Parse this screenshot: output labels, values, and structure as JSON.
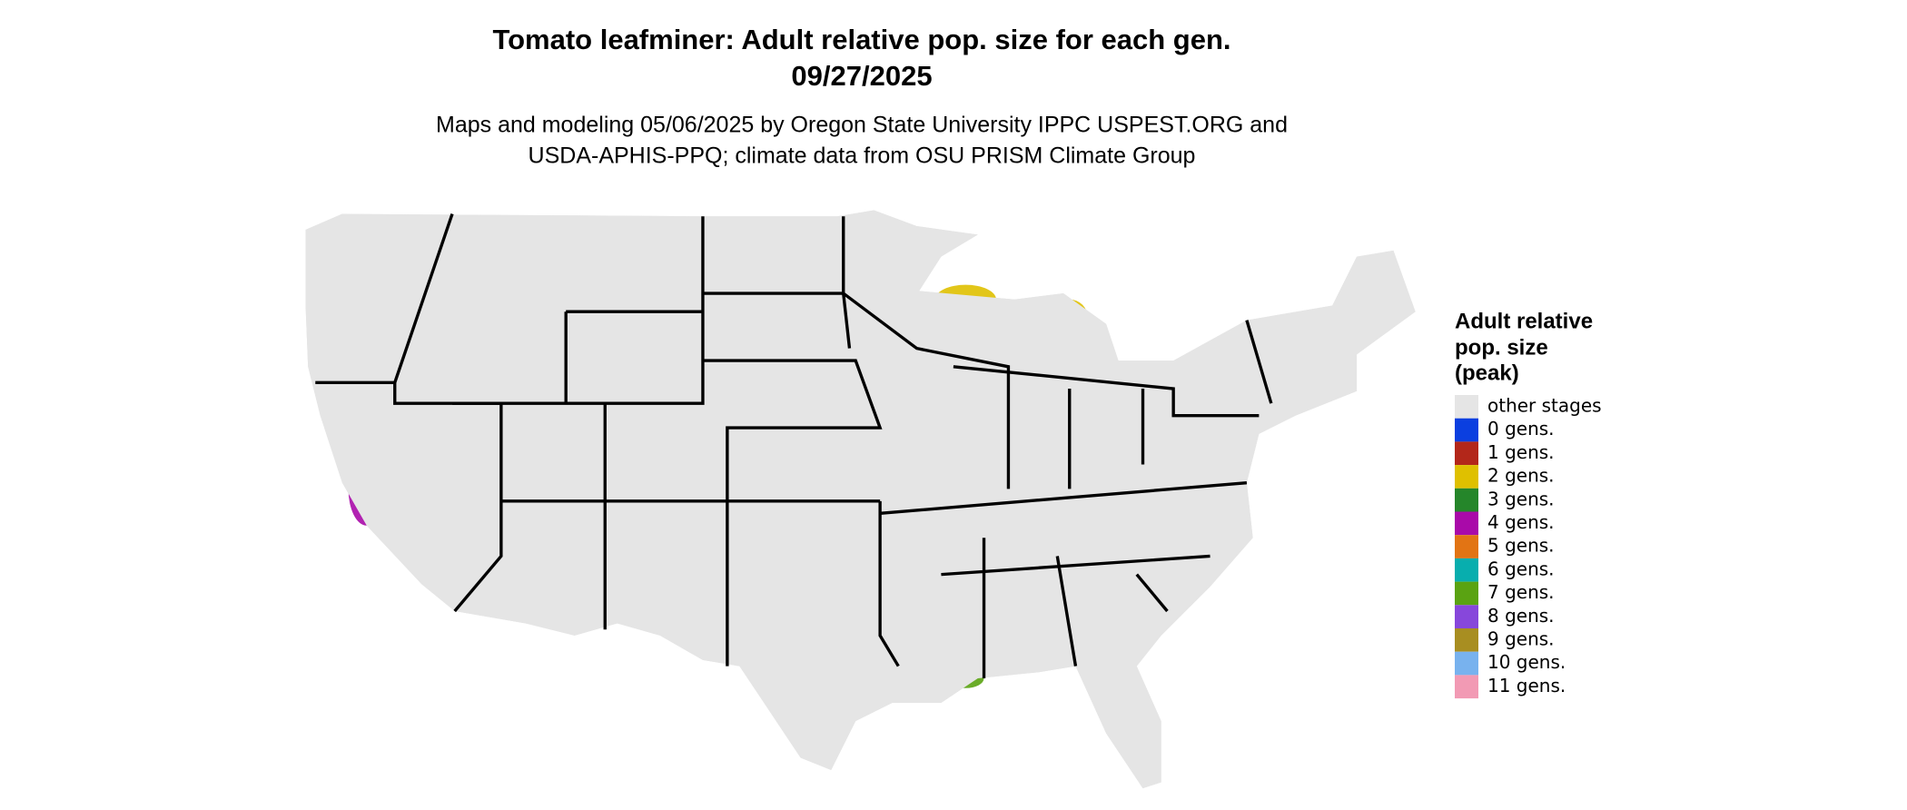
{
  "header": {
    "title_lines": [
      "Tomato leafminer: Adult relative pop. size for each gen.",
      "09/27/2025"
    ],
    "subtitle_lines": [
      "Maps and modeling 05/06/2025 by Oregon State University IPPC USPEST.ORG and",
      "USDA-APHIS-PPQ; climate data from OSU PRISM Climate Group"
    ]
  },
  "legend": {
    "title_lines": [
      "Adult relative",
      "pop. size",
      "(peak)"
    ],
    "items": [
      {
        "label": "other stages",
        "color": "#e5e5e5"
      },
      {
        "label": "0 gens.",
        "color": "#0b3fe0"
      },
      {
        "label": "1 gens.",
        "color": "#b3271a"
      },
      {
        "label": "2 gens.",
        "color": "#dfc000"
      },
      {
        "label": "3 gens.",
        "color": "#25862a"
      },
      {
        "label": "4 gens.",
        "color": "#a90aa9"
      },
      {
        "label": "5 gens.",
        "color": "#e27414"
      },
      {
        "label": "6 gens.",
        "color": "#08aeae"
      },
      {
        "label": "7 gens.",
        "color": "#5aa312"
      },
      {
        "label": "8 gens.",
        "color": "#8747db"
      },
      {
        "label": "9 gens.",
        "color": "#a88e21"
      },
      {
        "label": "10 gens.",
        "color": "#78b2ee"
      },
      {
        "label": "11 gens.",
        "color": "#f29ab4"
      }
    ]
  }
}
